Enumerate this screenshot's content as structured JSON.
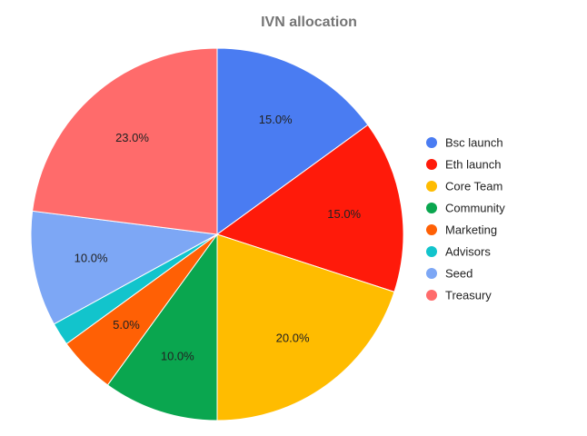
{
  "chart_data": {
    "type": "pie",
    "title": "IVN allocation",
    "labels": [
      "Bsc launch",
      "Eth launch",
      "Core Team",
      "Community",
      "Marketing",
      "Advisors",
      "Seed",
      "Treasury"
    ],
    "values": [
      15.0,
      15.0,
      20.0,
      10.0,
      5.0,
      2.0,
      10.0,
      23.0
    ],
    "value_labels": [
      "15.0%",
      "15.0%",
      "20.0%",
      "10.0%",
      "5.0%",
      "",
      "10.0%",
      "23.0%"
    ],
    "colors": [
      "#4a7cf2",
      "#ff1a0a",
      "#ffbc00",
      "#0aa64f",
      "#ff6005",
      "#12c4cc",
      "#7da7f5",
      "#ff6b6b"
    ],
    "legend_position": "right",
    "start_angle": "top",
    "direction": "clockwise"
  }
}
